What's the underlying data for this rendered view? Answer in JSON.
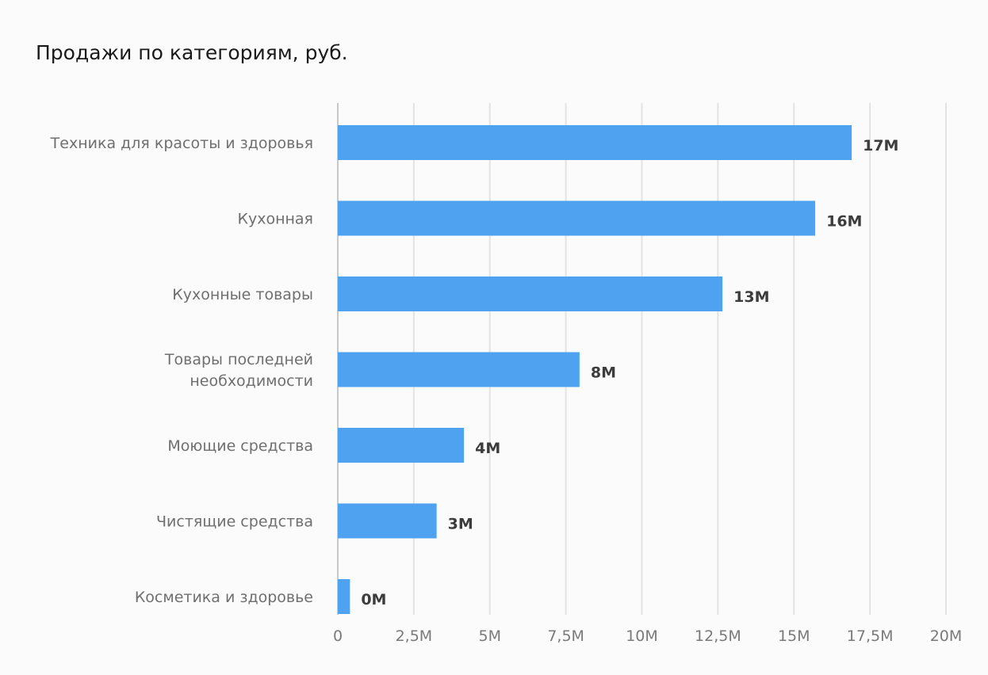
{
  "title": "Продажи по категориям, руб.",
  "colors": {
    "bar": "#4fa2f0",
    "grid": "#e3e3e3",
    "axis": "#c8c8c8"
  },
  "chart_data": {
    "type": "bar",
    "orientation": "horizontal",
    "title": "Продажи по категориям, руб.",
    "xlabel": "",
    "ylabel": "",
    "xlim": [
      0,
      20000000
    ],
    "grid": true,
    "legend": "none",
    "categories": [
      [
        "Техника для красоты и здоровья"
      ],
      [
        "Кухонная"
      ],
      [
        "Кухонные товары"
      ],
      [
        "Товары последней",
        "необходимости"
      ],
      [
        "Моющие средства"
      ],
      [
        "Чистящие средства"
      ],
      [
        "Косметика и здоровье"
      ]
    ],
    "values": [
      16900000,
      15700000,
      12650000,
      7950000,
      4150000,
      3250000,
      400000
    ],
    "data_labels": [
      "17M",
      "16M",
      "13M",
      "8M",
      "4M",
      "3M",
      "0M"
    ],
    "ticks": [
      0,
      2500000,
      5000000,
      7500000,
      10000000,
      12500000,
      15000000,
      17500000,
      20000000
    ],
    "tick_labels": [
      "0",
      "2,5M",
      "5M",
      "7,5M",
      "10M",
      "12,5M",
      "15M",
      "17,5M",
      "20M"
    ]
  }
}
